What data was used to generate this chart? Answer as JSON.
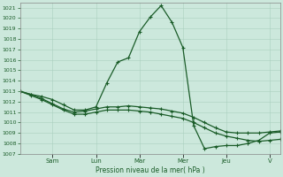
{
  "bg_color": "#cce8dc",
  "grid_color": "#aacfbf",
  "line_color": "#1a5c28",
  "text_color": "#1a5c28",
  "xlabel": "Pression niveau de la mer( hPa )",
  "ylim": [
    1007,
    1021.5
  ],
  "ytick_min": 1007,
  "ytick_max": 1021,
  "day_labels": [
    "Sam",
    "Lun",
    "Mar",
    "Mer",
    "Jeu",
    "V"
  ],
  "series": [
    {
      "x": [
        0,
        1,
        2,
        3,
        4,
        5,
        6,
        7,
        8,
        9,
        10,
        11,
        12,
        13,
        14,
        15,
        16,
        17,
        18,
        19,
        20,
        21,
        22,
        23,
        24
      ],
      "y": [
        1013.0,
        1012.7,
        1012.5,
        1012.2,
        1011.7,
        1011.2,
        1011.2,
        1011.5,
        1013.8,
        1015.8,
        1016.2,
        1018.7,
        1020.1,
        1021.2,
        1019.6,
        1017.2,
        1009.7,
        1007.5,
        1007.7,
        1007.8,
        1007.8,
        1008.0,
        1008.3,
        1009.0,
        1009.1
      ]
    },
    {
      "x": [
        0,
        1,
        2,
        3,
        4,
        5,
        6,
        7,
        8,
        9,
        10,
        11,
        12,
        13,
        14,
        15,
        16,
        17,
        18,
        19,
        20,
        21,
        22,
        23,
        24
      ],
      "y": [
        1013.0,
        1012.7,
        1012.3,
        1011.8,
        1011.3,
        1011.0,
        1011.1,
        1011.3,
        1011.5,
        1011.5,
        1011.6,
        1011.5,
        1011.4,
        1011.3,
        1011.1,
        1010.9,
        1010.5,
        1010.0,
        1009.5,
        1009.1,
        1009.0,
        1009.0,
        1009.0,
        1009.1,
        1009.2
      ]
    },
    {
      "x": [
        0,
        1,
        2,
        3,
        4,
        5,
        6,
        7,
        8,
        9,
        10,
        11,
        12,
        13,
        14,
        15,
        16,
        17,
        18,
        19,
        20,
        21,
        22,
        23,
        24
      ],
      "y": [
        1013.0,
        1012.6,
        1012.2,
        1011.7,
        1011.2,
        1010.8,
        1010.8,
        1011.0,
        1011.2,
        1011.2,
        1011.2,
        1011.1,
        1011.0,
        1010.8,
        1010.6,
        1010.4,
        1010.0,
        1009.5,
        1009.0,
        1008.7,
        1008.5,
        1008.3,
        1008.2,
        1008.3,
        1008.4
      ]
    }
  ],
  "day_x_positions": [
    3,
    7,
    11,
    15,
    19,
    23
  ],
  "spine_color": "#888888"
}
